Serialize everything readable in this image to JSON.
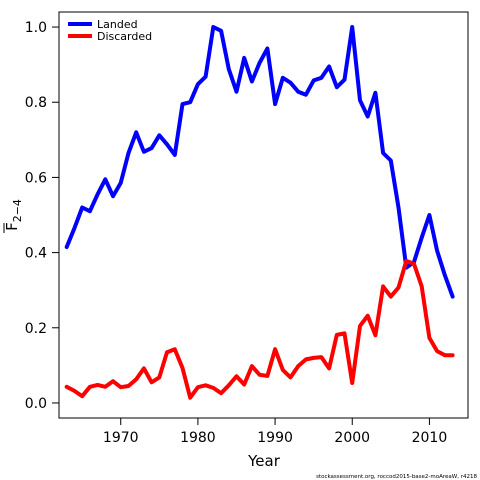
{
  "chart_data": {
    "type": "line",
    "xlabel": "Year",
    "ylabel_main": "F",
    "ylabel_sub": "2−4",
    "xlim": [
      1962,
      2015
    ],
    "ylim": [
      -0.04,
      1.04
    ],
    "xticks": [
      1970,
      1980,
      1990,
      2000,
      2010
    ],
    "yticks": [
      0.0,
      0.2,
      0.4,
      0.6,
      0.8,
      1.0
    ],
    "ytick_labels": [
      "0.0",
      "0.2",
      "0.4",
      "0.6",
      "0.8",
      "1.0"
    ],
    "legend_position": "top-left",
    "grid": false,
    "footer": "stockassessment.org, roccod2015-base2-moAreaW, r4218",
    "x": [
      1963,
      1964,
      1965,
      1966,
      1967,
      1968,
      1969,
      1970,
      1971,
      1972,
      1973,
      1974,
      1975,
      1976,
      1977,
      1978,
      1979,
      1980,
      1981,
      1982,
      1983,
      1984,
      1985,
      1986,
      1987,
      1988,
      1989,
      1990,
      1991,
      1992,
      1993,
      1994,
      1995,
      1996,
      1997,
      1998,
      1999,
      2000,
      2001,
      2002,
      2003,
      2004,
      2005,
      2006,
      2007,
      2008,
      2009,
      2010,
      2011,
      2012,
      2013
    ],
    "series": [
      {
        "name": "Landed",
        "color": "#0000ff",
        "values": [
          0.415,
          0.465,
          0.52,
          0.51,
          0.555,
          0.595,
          0.55,
          0.585,
          0.665,
          0.72,
          0.668,
          0.678,
          0.712,
          0.688,
          0.66,
          0.795,
          0.8,
          0.848,
          0.868,
          1.0,
          0.99,
          0.888,
          0.828,
          0.918,
          0.855,
          0.905,
          0.943,
          0.795,
          0.865,
          0.852,
          0.828,
          0.82,
          0.858,
          0.865,
          0.895,
          0.84,
          0.86,
          1.0,
          0.805,
          0.762,
          0.825,
          0.665,
          0.645,
          0.52,
          0.36,
          0.375,
          0.44,
          0.5,
          0.405,
          0.34,
          0.283
        ]
      },
      {
        "name": "Discarded",
        "color": "#ff0000",
        "values": [
          0.043,
          0.032,
          0.018,
          0.043,
          0.048,
          0.043,
          0.058,
          0.042,
          0.045,
          0.063,
          0.092,
          0.055,
          0.068,
          0.135,
          0.143,
          0.093,
          0.014,
          0.042,
          0.047,
          0.04,
          0.026,
          0.047,
          0.071,
          0.049,
          0.098,
          0.075,
          0.072,
          0.143,
          0.088,
          0.068,
          0.098,
          0.116,
          0.12,
          0.122,
          0.092,
          0.181,
          0.185,
          0.053,
          0.205,
          0.232,
          0.18,
          0.31,
          0.283,
          0.307,
          0.378,
          0.37,
          0.31,
          0.173,
          0.138,
          0.127,
          0.127
        ]
      }
    ]
  }
}
